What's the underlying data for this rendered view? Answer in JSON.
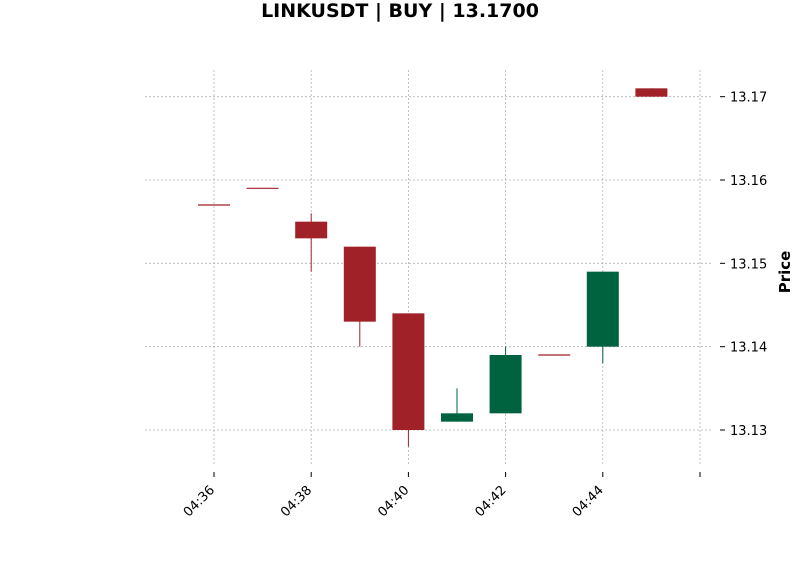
{
  "chart_data": {
    "type": "candlestick",
    "title": "LINKUSDT | BUY | 13.1700",
    "ylabel": "Price",
    "xlabel": "",
    "ylim": [
      13.1258,
      13.1732
    ],
    "yticks": [
      "13.13",
      "13.14",
      "13.15",
      "13.16",
      "13.17"
    ],
    "xticks": [
      "04:36",
      "04:38",
      "04:40",
      "04:42",
      "04:44",
      ""
    ],
    "grid": true,
    "y_axis_side": "right",
    "colors": {
      "up": "#006340",
      "down": "#a02128",
      "grid": "#b0b0b0"
    },
    "candles": [
      {
        "time": "04:36",
        "open": 13.157,
        "high": 13.157,
        "low": 13.157,
        "close": 13.157
      },
      {
        "time": "04:37",
        "open": 13.159,
        "high": 13.159,
        "low": 13.159,
        "close": 13.159
      },
      {
        "time": "04:38",
        "open": 13.155,
        "high": 13.156,
        "low": 13.149,
        "close": 13.153
      },
      {
        "time": "04:39",
        "open": 13.152,
        "high": 13.152,
        "low": 13.14,
        "close": 13.143
      },
      {
        "time": "04:40",
        "open": 13.144,
        "high": 13.144,
        "low": 13.128,
        "close": 13.13
      },
      {
        "time": "04:41",
        "open": 13.131,
        "high": 13.135,
        "low": 13.131,
        "close": 13.132
      },
      {
        "time": "04:42",
        "open": 13.132,
        "high": 13.14,
        "low": 13.132,
        "close": 13.139
      },
      {
        "time": "04:43",
        "open": 13.139,
        "high": 13.139,
        "low": 13.139,
        "close": 13.139
      },
      {
        "time": "04:44",
        "open": 13.14,
        "high": 13.149,
        "low": 13.138,
        "close": 13.149
      },
      {
        "time": "04:45",
        "open": 13.171,
        "high": 13.171,
        "low": 13.17,
        "close": 13.17
      }
    ]
  }
}
